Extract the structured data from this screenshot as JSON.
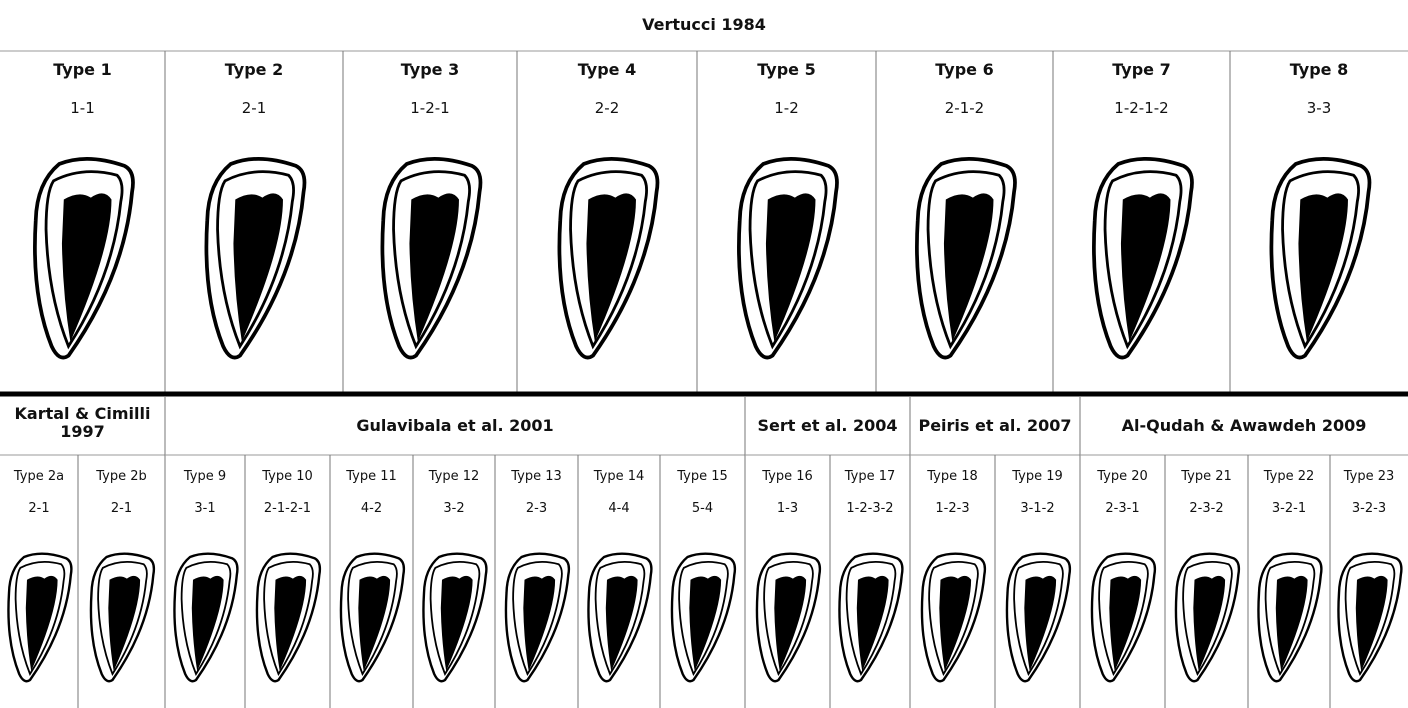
{
  "title": "Vertucci 1984",
  "top_row": [
    {
      "type": "Type 1",
      "config": "1-1"
    },
    {
      "type": "Type 2",
      "config": "2-1"
    },
    {
      "type": "Type 3",
      "config": "1-2-1"
    },
    {
      "type": "Type 4",
      "config": "2-2"
    },
    {
      "type": "Type 5",
      "config": "1-2"
    },
    {
      "type": "Type 6",
      "config": "2-1-2"
    },
    {
      "type": "Type 7",
      "config": "1-2-1-2"
    },
    {
      "type": "Type 8",
      "config": "3-3"
    }
  ],
  "groups": [
    {
      "name": "Kartal & Cimilli 1997",
      "types": [
        {
          "type": "Type 2a",
          "config": "2-1"
        },
        {
          "type": "Type 2b",
          "config": "2-1"
        }
      ]
    },
    {
      "name": "Gulavibala et al. 2001",
      "types": [
        {
          "type": "Type 9",
          "config": "3-1"
        },
        {
          "type": "Type 10",
          "config": "2-1-2-1"
        },
        {
          "type": "Type 11",
          "config": "4-2"
        },
        {
          "type": "Type 12",
          "config": "3-2"
        },
        {
          "type": "Type 13",
          "config": "2-3"
        },
        {
          "type": "Type 14",
          "config": "4-4"
        },
        {
          "type": "Type 15",
          "config": "5-4"
        }
      ]
    },
    {
      "name": "Sert et al. 2004",
      "types": [
        {
          "type": "Type 16",
          "config": "1-3"
        },
        {
          "type": "Type 17",
          "config": "1-2-3-2"
        }
      ]
    },
    {
      "name": "Peiris et al. 2007",
      "types": [
        {
          "type": "Type 18",
          "config": "1-2-3"
        },
        {
          "type": "Type 19",
          "config": "3-1-2"
        }
      ]
    },
    {
      "name": "Al-Qudah & Awawdeh 2009",
      "types": [
        {
          "type": "Type 20",
          "config": "2-3-1"
        },
        {
          "type": "Type 21",
          "config": "2-3-2"
        },
        {
          "type": "Type 22",
          "config": "3-2-1"
        },
        {
          "type": "Type 23",
          "config": "3-2-3"
        }
      ]
    }
  ]
}
